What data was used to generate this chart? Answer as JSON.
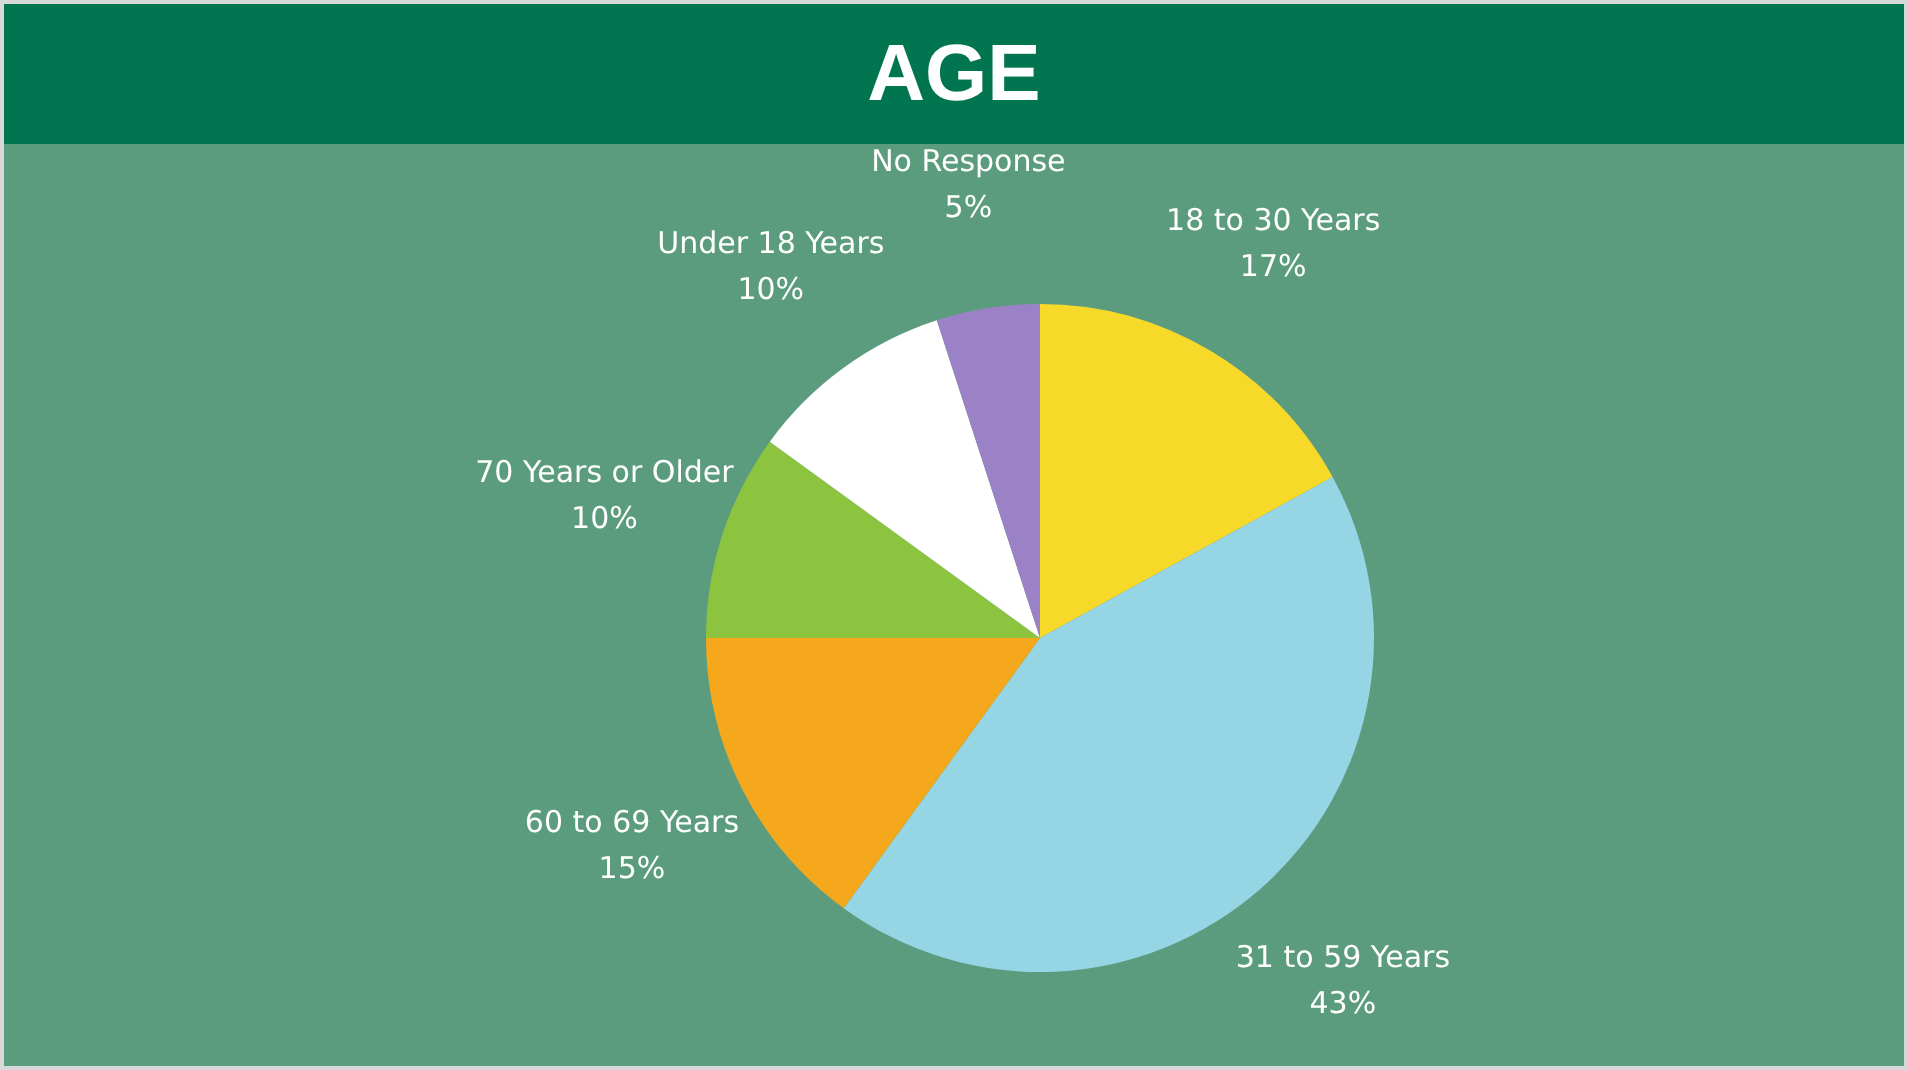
{
  "chart_data": {
    "type": "pie",
    "title": "AGE",
    "categories": [
      "18 to 30 Years",
      "31 to 59 Years",
      "60 to 69 Years",
      "70 Years or Older",
      "Under 18 Years",
      "No Response"
    ],
    "values": [
      17,
      43,
      15,
      10,
      10,
      5
    ],
    "value_labels": [
      "17%",
      "43%",
      "15%",
      "10%",
      "10%",
      "5%"
    ],
    "colors": [
      "#f7d92a",
      "#96d5e4",
      "#f5a81c",
      "#8cc43f",
      "#ffffff",
      "#9b82c6"
    ],
    "legend": false
  }
}
